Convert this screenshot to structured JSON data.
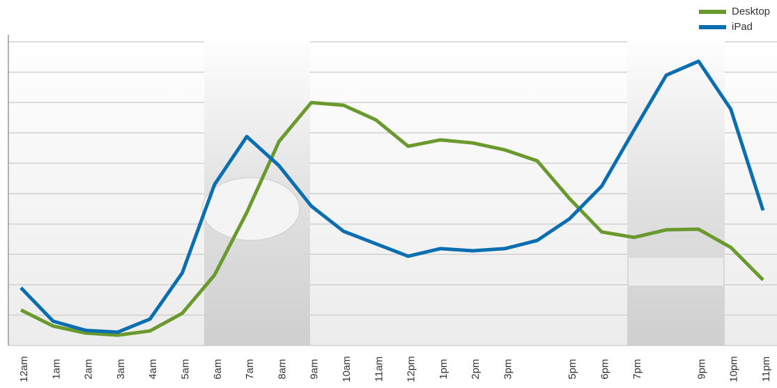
{
  "chart_data": {
    "type": "line",
    "categories": [
      "12am",
      "1am",
      "2am",
      "3am",
      "4am",
      "5am",
      "6am",
      "7am",
      "8am",
      "9am",
      "10am",
      "11am",
      "12pm",
      "1pm",
      "2pm",
      "3pm",
      null,
      "5pm",
      "6pm",
      "7pm",
      null,
      "9pm",
      "10pm",
      "11pm"
    ],
    "series": [
      {
        "name": "Desktop",
        "color": "#6a9a2e",
        "values": [
          1.17,
          0.64,
          0.41,
          0.34,
          0.48,
          1.06,
          2.32,
          4.38,
          6.72,
          8.0,
          7.91,
          7.43,
          6.56,
          6.77,
          6.67,
          6.44,
          6.08,
          4.84,
          3.74,
          3.56,
          3.81,
          3.83,
          3.23,
          2.16
        ]
      },
      {
        "name": "iPad",
        "color": "#0a6eb0",
        "values": [
          1.9,
          0.8,
          0.5,
          0.44,
          0.87,
          2.39,
          5.3,
          6.88,
          5.92,
          4.59,
          3.76,
          3.35,
          2.94,
          3.19,
          3.12,
          3.19,
          3.46,
          4.17,
          5.25,
          7.09,
          8.9,
          9.36,
          7.78,
          4.45
        ]
      }
    ],
    "ylim": [
      0,
      10
    ],
    "yticks": [
      0,
      1,
      2,
      3,
      4,
      5,
      6,
      7,
      8,
      9,
      10
    ],
    "grid": true,
    "legend": "top-right"
  }
}
